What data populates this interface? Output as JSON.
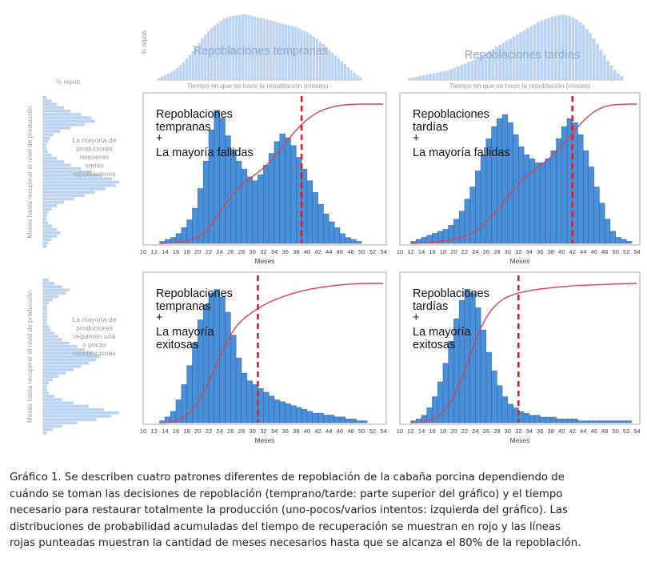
{
  "colors": {
    "bar": "#4a90d9",
    "bar_edge": "#2c5f9e",
    "marginal_bar": "#b9d3f0",
    "cdf": "#d9434f",
    "p80_line": "#d81e2a",
    "frame": "#aaaaaa",
    "muted_text": "#9a9a9a"
  },
  "top_margin": {
    "ylabel": "% repob.",
    "xlabel": "Tiempo en que se hace la repoblación (meses)",
    "panels": [
      {
        "title": "Repoblaciones tempranas",
        "values": [
          3,
          5,
          7,
          9,
          11,
          14,
          17,
          21,
          25,
          30,
          35,
          40,
          46,
          52,
          58,
          63,
          68,
          72,
          76,
          79,
          82,
          85,
          87,
          88,
          89,
          90,
          90,
          91,
          91,
          90,
          89,
          88,
          87,
          86,
          85,
          84,
          83,
          82,
          80,
          79,
          78,
          77,
          76,
          75,
          74,
          72,
          70,
          68,
          66,
          63,
          60,
          57,
          53,
          50,
          46,
          42,
          38,
          34,
          30,
          26,
          22,
          18,
          14,
          10,
          7,
          4
        ]
      },
      {
        "title": "Repoblaciones tardías",
        "values": [
          3,
          4,
          5,
          6,
          7,
          8,
          9,
          10,
          11,
          12,
          13,
          14,
          16,
          18,
          20,
          22,
          24,
          26,
          28,
          30,
          33,
          36,
          39,
          42,
          45,
          48,
          51,
          54,
          57,
          60,
          63,
          66,
          69,
          72,
          75,
          78,
          81,
          84,
          86,
          88,
          90,
          92,
          93,
          94,
          95,
          94,
          93,
          91,
          88,
          84,
          80,
          74,
          68,
          60,
          52,
          44,
          36,
          28,
          21,
          15,
          10,
          6
        ]
      }
    ]
  },
  "left_margin": {
    "top_label": "% repob.",
    "ylabel": "Meses hasta recuperar el nivel de producción",
    "rows": [
      {
        "note": "La mayoría de productores requieren varias repoblaciones",
        "values": [
          2,
          5,
          8,
          12,
          16,
          22,
          28,
          30,
          24,
          16,
          10,
          6,
          4,
          3,
          2,
          2,
          3,
          5,
          8,
          12,
          16,
          22,
          28,
          34,
          40,
          44,
          42,
          36,
          30,
          24,
          18,
          12,
          8,
          5,
          3,
          2,
          2,
          3,
          5,
          8,
          10,
          8,
          5,
          3,
          2
        ]
      },
      {
        "note": "La mayoría de productores requieren una o pocas repoblaciones",
        "values": [
          3,
          6,
          10,
          14,
          12,
          8,
          5,
          3,
          2,
          2,
          2,
          2,
          2,
          2,
          3,
          4,
          6,
          8,
          10,
          14,
          18,
          22,
          26,
          30,
          28,
          24,
          20,
          16,
          12,
          8,
          5,
          3,
          2,
          2,
          3,
          6,
          10,
          16,
          24,
          32,
          40,
          36,
          28,
          18,
          10,
          5,
          2
        ]
      }
    ]
  },
  "chart_data": [
    {
      "type": "bar",
      "title": "Repoblaciones tempranas + La mayoría fallidas",
      "title_lines": [
        "Repoblaciones",
        "tempranas",
        "+",
        "La mayoría fallidas"
      ],
      "xlabel": "Meses",
      "x_ticks": [
        10,
        12,
        14,
        16,
        18,
        20,
        22,
        24,
        26,
        28,
        30,
        32,
        34,
        36,
        38,
        40,
        42,
        44,
        46,
        48,
        50,
        52,
        54
      ],
      "xlim": [
        10,
        54.5
      ],
      "bin_start": 13,
      "bin_width": 1,
      "values": [
        1,
        2,
        3,
        5,
        8,
        12,
        18,
        28,
        42,
        58,
        68,
        64,
        55,
        48,
        42,
        38,
        34,
        32,
        35,
        40,
        46,
        52,
        56,
        54,
        50,
        44,
        38,
        32,
        26,
        20,
        15,
        11,
        8,
        5,
        3,
        2,
        1
      ],
      "ymax": 72,
      "cdf_flat_after": 48,
      "p80_month": 39
    },
    {
      "type": "bar",
      "title": "Repoblaciones tardías + La mayoría fallidas",
      "title_lines": [
        "Repoblaciones",
        "tardías",
        "+",
        "La mayoría fallidas"
      ],
      "xlabel": "Meses",
      "x_ticks": [
        10,
        12,
        14,
        16,
        18,
        20,
        22,
        24,
        26,
        28,
        30,
        32,
        34,
        36,
        38,
        40,
        42,
        44,
        46,
        48,
        50,
        52,
        54
      ],
      "xlim": [
        10,
        54.5
      ],
      "bin_start": 12,
      "bin_width": 1,
      "values": [
        1,
        2,
        3,
        4,
        5,
        6,
        7,
        9,
        12,
        16,
        22,
        28,
        36,
        44,
        52,
        58,
        62,
        64,
        60,
        54,
        48,
        44,
        42,
        40,
        40,
        42,
        46,
        52,
        58,
        62,
        60,
        54,
        46,
        38,
        28,
        20,
        12,
        6,
        3,
        2,
        1
      ],
      "ymax": 70,
      "cdf_flat_after": 49,
      "p80_month": 42
    },
    {
      "type": "bar",
      "title": "Repoblaciones tempranas + La mayoría exitosas",
      "title_lines": [
        "Repoblaciones",
        "tempranas",
        "+",
        "La mayoría",
        "exitosas"
      ],
      "xlabel": "Meses",
      "x_ticks": [
        10,
        12,
        14,
        16,
        18,
        20,
        22,
        24,
        26,
        28,
        30,
        32,
        34,
        36,
        38,
        40,
        42,
        44,
        46,
        48,
        50,
        52,
        54
      ],
      "xlim": [
        10,
        54.5
      ],
      "bin_start": 13,
      "bin_width": 1,
      "values": [
        1,
        3,
        6,
        12,
        20,
        30,
        42,
        54,
        62,
        68,
        70,
        66,
        58,
        46,
        34,
        26,
        22,
        20,
        18,
        16,
        14,
        12,
        11,
        10,
        9,
        8,
        7,
        6,
        5,
        5,
        4,
        4,
        3,
        3,
        2,
        2,
        1,
        1
      ],
      "ymax": 74,
      "cdf_flat_after": 44,
      "p80_month": 31
    },
    {
      "type": "bar",
      "title": "Repoblaciones tardías + La mayoría exitosas",
      "title_lines": [
        "Repoblaciones",
        "tardías",
        "+",
        "La mayoría",
        "exitosas"
      ],
      "xlabel": "Meses",
      "x_ticks": [
        10,
        12,
        14,
        16,
        18,
        20,
        22,
        24,
        26,
        28,
        30,
        32,
        34,
        36,
        38,
        40,
        42,
        44,
        46,
        48,
        50,
        52,
        54
      ],
      "xlim": [
        10,
        54.5
      ],
      "bin_start": 12,
      "bin_width": 1,
      "values": [
        1,
        2,
        4,
        8,
        14,
        22,
        32,
        44,
        56,
        66,
        72,
        70,
        62,
        50,
        38,
        28,
        20,
        14,
        10,
        8,
        6,
        5,
        4,
        4,
        3,
        3,
        3,
        2,
        2,
        2,
        2,
        1,
        1,
        1,
        1,
        1,
        1,
        1,
        1,
        1,
        1
      ],
      "ymax": 76,
      "cdf_flat_after": 40,
      "p80_month": 32
    }
  ],
  "caption": {
    "lines": [
      "Gráfico 1. Se describen cuatro patrones diferentes de repoblación de la cabaña porcina dependiendo de",
      "cuándo se toman las decisiones de repoblación (temprano/tarde: parte superior del gráfico) y el tiempo",
      "necesario para restaurar totalmente la producción (uno-pocos/varios intentos: izquierda del gráfico). Las",
      "distribuciones de probabilidad acumuladas del tiempo de recuperación se muestran en rojo y las líneas",
      "rojas punteadas muestran la cantidad de meses necesarios hasta que se alcanza el 80% de la repoblación."
    ]
  }
}
